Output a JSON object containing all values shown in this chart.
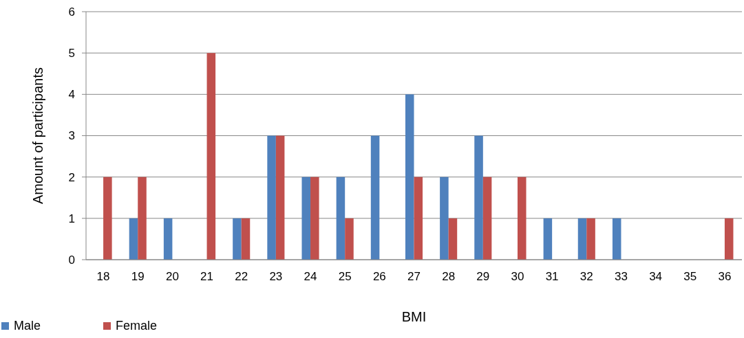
{
  "chart_data": {
    "type": "bar",
    "xlabel": "BMI",
    "ylabel": "Amount of participants",
    "categories": [
      "18",
      "19",
      "20",
      "21",
      "22",
      "23",
      "24",
      "25",
      "26",
      "27",
      "28",
      "29",
      "30",
      "31",
      "32",
      "33",
      "34",
      "35",
      "36"
    ],
    "series": [
      {
        "name": "Male",
        "color": "#4f81bd",
        "values": [
          0,
          1,
          1,
          0,
          1,
          3,
          2,
          2,
          3,
          4,
          2,
          3,
          0,
          1,
          1,
          1,
          0,
          0,
          0
        ]
      },
      {
        "name": "Female",
        "color": "#c0504d",
        "values": [
          2,
          2,
          0,
          5,
          1,
          3,
          2,
          1,
          0,
          2,
          1,
          2,
          2,
          0,
          1,
          0,
          0,
          0,
          1
        ]
      }
    ],
    "ylim": [
      0,
      6
    ],
    "yticks": [
      0,
      1,
      2,
      3,
      4,
      5,
      6
    ],
    "grid": "y",
    "legend": "bottom left"
  }
}
